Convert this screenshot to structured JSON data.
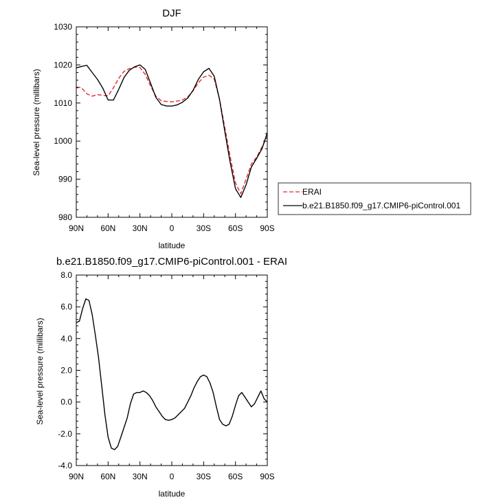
{
  "chart_data": [
    {
      "type": "line",
      "title": "DJF",
      "xlabel": "latitude",
      "ylabel": "Sea-level pressure (millibars)",
      "x_ticks": [
        "90N",
        "60N",
        "30N",
        "0",
        "30S",
        "60S",
        "90S"
      ],
      "x_tick_values": [
        90,
        60,
        30,
        0,
        -30,
        -60,
        -90
      ],
      "xlim": [
        90,
        -90
      ],
      "y_ticks": [
        "980",
        "990",
        "1000",
        "1010",
        "1020",
        "1030"
      ],
      "y_tick_values": [
        980,
        990,
        1000,
        1010,
        1020,
        1030
      ],
      "ylim": [
        980,
        1030
      ],
      "grid": false,
      "legend_position": "right",
      "series": [
        {
          "name": "ERAI",
          "color": "#e8262b",
          "dash": "dashed",
          "x": [
            90,
            85,
            80,
            75,
            70,
            65,
            60,
            55,
            50,
            45,
            40,
            35,
            30,
            25,
            20,
            15,
            10,
            5,
            0,
            -5,
            -10,
            -15,
            -20,
            -25,
            -30,
            -35,
            -40,
            -45,
            -50,
            -55,
            -60,
            -65,
            -70,
            -75,
            -80,
            -85,
            -90
          ],
          "values": [
            1014.2,
            1014.0,
            1012.4,
            1011.8,
            1012.2,
            1012.0,
            1011.9,
            1014.0,
            1016.5,
            1018.3,
            1019.0,
            1019.4,
            1019.3,
            1017.5,
            1014.5,
            1011.8,
            1010.6,
            1010.4,
            1010.3,
            1010.5,
            1010.8,
            1011.6,
            1013.2,
            1015.3,
            1016.8,
            1017.3,
            1016.3,
            1011.0,
            1003.5,
            996.0,
            989.0,
            986.2,
            990.0,
            994.0,
            995.8,
            998.5,
            1001.2
          ]
        },
        {
          "name": "b.e21.B1850.f09_g17.CMIP6-piControl.001",
          "color": "#000000",
          "dash": "solid",
          "x": [
            90,
            85,
            80,
            75,
            70,
            65,
            60,
            55,
            50,
            45,
            40,
            35,
            30,
            25,
            20,
            15,
            10,
            5,
            0,
            -5,
            -10,
            -15,
            -20,
            -25,
            -30,
            -35,
            -40,
            -45,
            -50,
            -55,
            -60,
            -65,
            -70,
            -75,
            -80,
            -85,
            -90
          ],
          "values": [
            1019.2,
            1019.6,
            1019.9,
            1018.0,
            1016.2,
            1013.9,
            1010.8,
            1010.8,
            1013.6,
            1016.7,
            1018.6,
            1019.5,
            1020.0,
            1018.8,
            1015.2,
            1011.5,
            1009.6,
            1009.2,
            1009.2,
            1009.5,
            1010.2,
            1011.3,
            1013.3,
            1016.2,
            1018.2,
            1019.1,
            1017.0,
            1010.9,
            1002.5,
            994.5,
            987.5,
            985.2,
            988.5,
            993.2,
            995.5,
            998.0,
            1002.2
          ]
        }
      ]
    },
    {
      "type": "line",
      "title": "b.e21.B1850.f09_g17.CMIP6-piControl.001 - ERAI",
      "xlabel": "latitude",
      "ylabel": "Sea-level pressure (millibars)",
      "x_ticks": [
        "90N",
        "60N",
        "30N",
        "0",
        "30S",
        "60S",
        "90S"
      ],
      "x_tick_values": [
        90,
        60,
        30,
        0,
        -30,
        -60,
        -90
      ],
      "xlim": [
        90,
        -90
      ],
      "y_ticks": [
        "-4.0",
        "-2.0",
        "0.0",
        "2.0",
        "4.0",
        "6.0",
        "8.0"
      ],
      "y_tick_values": [
        -4,
        -2,
        0,
        2,
        4,
        6,
        8
      ],
      "ylim": [
        -4,
        8
      ],
      "grid": false,
      "series": [
        {
          "color": "#000000",
          "dash": "solid",
          "x": [
            90,
            87,
            84,
            81,
            78,
            75,
            72,
            69,
            66,
            63,
            60,
            57,
            54,
            51,
            48,
            45,
            42,
            39,
            36,
            33,
            30,
            27,
            24,
            21,
            18,
            15,
            12,
            9,
            6,
            3,
            0,
            -3,
            -6,
            -9,
            -12,
            -15,
            -18,
            -21,
            -24,
            -27,
            -30,
            -33,
            -36,
            -39,
            -42,
            -45,
            -48,
            -51,
            -54,
            -57,
            -60,
            -63,
            -66,
            -69,
            -72,
            -75,
            -78,
            -81,
            -84,
            -87,
            -90
          ],
          "values": [
            5.0,
            5.1,
            5.9,
            6.5,
            6.4,
            5.5,
            4.2,
            2.8,
            1.0,
            -0.8,
            -2.2,
            -2.9,
            -3.0,
            -2.8,
            -2.2,
            -1.6,
            -1.0,
            -0.1,
            0.5,
            0.6,
            0.6,
            0.7,
            0.6,
            0.4,
            0.1,
            -0.3,
            -0.6,
            -0.9,
            -1.1,
            -1.15,
            -1.1,
            -1.0,
            -0.8,
            -0.6,
            -0.4,
            0.0,
            0.4,
            0.9,
            1.3,
            1.6,
            1.7,
            1.6,
            1.2,
            0.6,
            -0.3,
            -1.1,
            -1.4,
            -1.5,
            -1.4,
            -0.9,
            -0.2,
            0.4,
            0.6,
            0.3,
            0.0,
            -0.3,
            -0.1,
            0.3,
            0.7,
            0.2,
            0.0
          ]
        }
      ]
    }
  ]
}
